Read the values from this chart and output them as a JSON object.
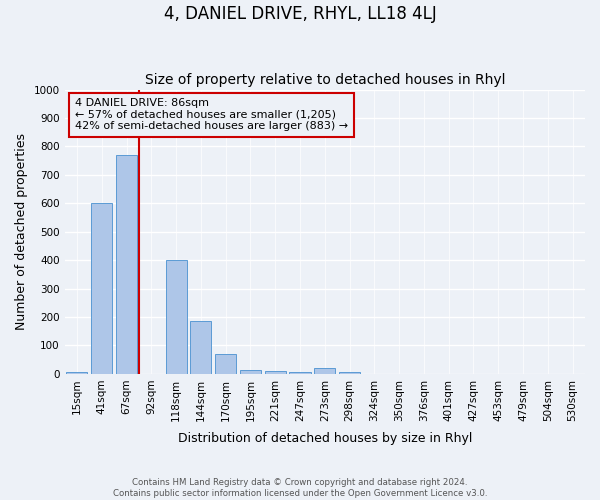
{
  "title": "4, DANIEL DRIVE, RHYL, LL18 4LJ",
  "subtitle": "Size of property relative to detached houses in Rhyl",
  "xlabel": "Distribution of detached houses by size in Rhyl",
  "ylabel": "Number of detached properties",
  "footer_line1": "Contains HM Land Registry data © Crown copyright and database right 2024.",
  "footer_line2": "Contains public sector information licensed under the Open Government Licence v3.0.",
  "bins": [
    "15sqm",
    "41sqm",
    "67sqm",
    "92sqm",
    "118sqm",
    "144sqm",
    "170sqm",
    "195sqm",
    "221sqm",
    "247sqm",
    "273sqm",
    "298sqm",
    "324sqm",
    "350sqm",
    "376sqm",
    "401sqm",
    "427sqm",
    "453sqm",
    "479sqm",
    "504sqm",
    "530sqm"
  ],
  "bar_values": [
    5,
    600,
    770,
    0,
    400,
    185,
    70,
    15,
    10,
    8,
    20,
    8,
    0,
    0,
    0,
    0,
    0,
    0,
    0,
    0,
    0
  ],
  "bar_color": "#aec6e8",
  "bar_edgecolor": "#5b9bd5",
  "marker_line_color": "#cc0000",
  "marker_label": "4 DANIEL DRIVE: 86sqm",
  "marker_stat1": "← 57% of detached houses are smaller (1,205)",
  "marker_stat2": "42% of semi-detached houses are larger (883) →",
  "annotation_box_edgecolor": "#cc0000",
  "ylim": [
    0,
    1000
  ],
  "yticks": [
    0,
    100,
    200,
    300,
    400,
    500,
    600,
    700,
    800,
    900,
    1000
  ],
  "bg_color": "#edf1f7",
  "grid_color": "#ffffff",
  "title_fontsize": 12,
  "subtitle_fontsize": 10,
  "axis_label_fontsize": 9,
  "tick_fontsize": 7.5
}
